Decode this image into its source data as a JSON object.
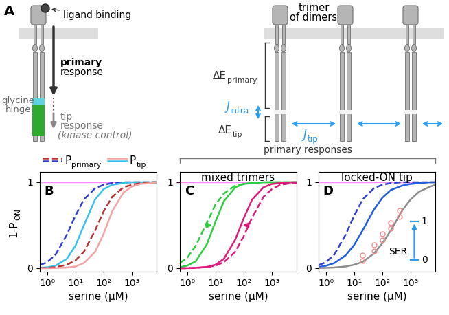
{
  "panel_a": {
    "label": "A",
    "ligand": "ligand binding",
    "primary": [
      "primary",
      "response"
    ],
    "hinge": [
      "glycine",
      "hinge"
    ],
    "tip": [
      "tip",
      "response",
      "(kinase control)"
    ],
    "trimer": [
      "trimer",
      "of dimers"
    ],
    "delta_e_primary": {
      "main": "ΔE",
      "sub": "primary"
    },
    "j_intra": {
      "main": "J",
      "sub": "intra"
    },
    "delta_e_tip": {
      "main": "ΔE",
      "sub": "tip"
    },
    "j_tip": {
      "main": "J",
      "sub": "tip"
    }
  },
  "header": "primary responses",
  "chart_data": [
    {
      "panel": "B",
      "type": "line",
      "log": "x",
      "xlabel": "serine (µM)",
      "ylabel": {
        "main": "1-P",
        "sub": "ON"
      },
      "x": [
        0.55,
        1,
        2,
        5,
        10,
        20,
        50,
        100,
        200,
        500,
        1000,
        2000,
        5000,
        7500
      ],
      "xlim": [
        0.55,
        7500
      ],
      "ylim": [
        -0.04,
        1.12
      ],
      "xticks": [
        {
          "value": 1,
          "label": "10⁰"
        },
        {
          "value": 10,
          "label": "10¹"
        },
        {
          "value": 100,
          "label": "10²"
        },
        {
          "value": 1000,
          "label": "10³"
        }
      ],
      "yticks": [
        0,
        1
      ],
      "reference_line": {
        "value": 1,
        "color": "#ff88ff"
      },
      "key": [
        {
          "main": "P",
          "sub": "primary",
          "colors": [
            "#b83232",
            "#2f3fcf"
          ],
          "line_style": "dashed"
        },
        {
          "main": "P",
          "sub": "tip",
          "colors": [
            "#f4a3a3",
            "#38c0f0"
          ],
          "line_style": "solid"
        }
      ],
      "series": [
        {
          "color": "#2f3fcf",
          "line_style": "dashed",
          "values": [
            0.035,
            0.07,
            0.16,
            0.39,
            0.61,
            0.8,
            0.93,
            0.97,
            0.99,
            1.0,
            1.0,
            1.0,
            1.0,
            1.0
          ]
        },
        {
          "color": "#38c0f0",
          "line_style": "solid",
          "values": [
            0.005,
            0.011,
            0.03,
            0.11,
            0.26,
            0.5,
            0.8,
            0.92,
            0.97,
            0.99,
            1.0,
            1.0,
            1.0,
            1.0
          ]
        },
        {
          "color": "#b83232",
          "line_style": "dashed",
          "values": [
            0.0,
            0.005,
            0.012,
            0.04,
            0.09,
            0.19,
            0.44,
            0.66,
            0.83,
            0.94,
            0.97,
            0.99,
            1.0,
            1.0
          ]
        },
        {
          "color": "#f4a3a3",
          "line_style": "solid",
          "values": [
            0.0,
            0.0,
            0.002,
            0.007,
            0.02,
            0.06,
            0.19,
            0.4,
            0.66,
            0.88,
            0.95,
            0.98,
            0.99,
            1.0
          ]
        }
      ]
    },
    {
      "panel": "C",
      "type": "line",
      "log": "x",
      "title": "mixed trimers",
      "xlabel": "serine (µM)",
      "x": [
        0.55,
        1,
        2,
        5,
        10,
        20,
        50,
        100,
        200,
        500,
        1000,
        2000,
        5000,
        7500
      ],
      "xlim": [
        0.55,
        7500
      ],
      "ylim": [
        -0.04,
        1.12
      ],
      "xticks": [
        {
          "value": 1,
          "label": "10⁰"
        },
        {
          "value": 10,
          "label": "10¹"
        },
        {
          "value": 100,
          "label": "10²"
        },
        {
          "value": 1000,
          "label": "10³"
        }
      ],
      "yticks": [
        0,
        1
      ],
      "reference_line": {
        "value": 1,
        "color": "#ff88ff"
      },
      "series": [
        {
          "color": "#2ecc40",
          "line_style": "dashed",
          "values": [
            0.06,
            0.12,
            0.26,
            0.53,
            0.74,
            0.87,
            0.96,
            0.98,
            0.99,
            1.0,
            1.0,
            1.0,
            1.0,
            1.0
          ]
        },
        {
          "color": "#2ecc40",
          "line_style": "solid",
          "values": [
            0.011,
            0.03,
            0.08,
            0.28,
            0.54,
            0.78,
            0.94,
            0.98,
            0.99,
            1.0,
            1.0,
            1.0,
            1.0,
            1.0
          ]
        },
        {
          "color": "#e0197d",
          "line_style": "dashed",
          "values": [
            0.0,
            0.0,
            0.004,
            0.012,
            0.03,
            0.07,
            0.19,
            0.37,
            0.59,
            0.83,
            0.92,
            0.97,
            0.99,
            0.99
          ]
        },
        {
          "color": "#e0197d",
          "line_style": "solid",
          "values": [
            0.0,
            0.001,
            0.004,
            0.015,
            0.04,
            0.11,
            0.33,
            0.58,
            0.8,
            0.94,
            0.98,
            0.99,
            1.0,
            1.0
          ]
        }
      ]
    },
    {
      "panel": "D",
      "type": "line",
      "log": "x",
      "title": "locked-ON tip",
      "xlabel": "serine (µM)",
      "x": [
        0.55,
        1,
        2,
        5,
        10,
        20,
        50,
        100,
        200,
        500,
        1000,
        2000,
        5000,
        7500
      ],
      "xlim": [
        0.55,
        7500
      ],
      "ylim": [
        -0.04,
        1.12
      ],
      "xticks": [
        {
          "value": 1,
          "label": "10⁰"
        },
        {
          "value": 10,
          "label": "10¹"
        },
        {
          "value": 100,
          "label": "10²"
        },
        {
          "value": 1000,
          "label": "10³"
        }
      ],
      "yticks": [
        0,
        1
      ],
      "reference_line": {
        "value": 1,
        "color": "#ff88ff"
      },
      "ser_scale": {
        "label": "SER",
        "top": 1,
        "bottom": 0,
        "color": "#2a9df4"
      },
      "series": [
        {
          "color": "#2f3fcf",
          "line_style": "dashed",
          "values": [
            0.035,
            0.07,
            0.16,
            0.39,
            0.61,
            0.8,
            0.93,
            0.97,
            0.99,
            1.0,
            1.0,
            1.0,
            1.0,
            1.0
          ]
        },
        {
          "color": "#1f5fe0",
          "line_style": "solid",
          "values": [
            0.015,
            0.028,
            0.06,
            0.15,
            0.27,
            0.44,
            0.68,
            0.82,
            0.91,
            0.96,
            0.98,
            0.99,
            1.0,
            1.0
          ]
        },
        {
          "color": "#8c8c8c",
          "line_style": "solid",
          "values": [
            0.002,
            0.004,
            0.008,
            0.02,
            0.04,
            0.074,
            0.17,
            0.29,
            0.44,
            0.67,
            0.8,
            0.89,
            0.95,
            0.97
          ]
        },
        {
          "type": "scatter",
          "color": "#f08a8a",
          "marker": "o",
          "x": [
            20,
            20,
            50,
            50,
            100,
            100,
            200,
            200,
            400,
            400
          ],
          "values": [
            0.09,
            0.15,
            0.2,
            0.27,
            0.33,
            0.4,
            0.46,
            0.53,
            0.6,
            0.67
          ]
        }
      ]
    }
  ]
}
